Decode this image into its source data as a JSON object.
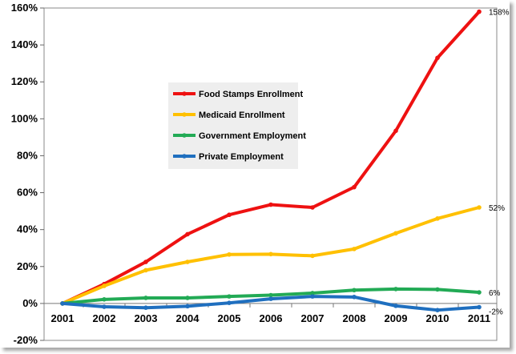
{
  "chart_data": {
    "type": "line",
    "title": "",
    "xlabel": "",
    "ylabel": "",
    "x": [
      "2001",
      "2002",
      "2003",
      "2004",
      "2005",
      "2006",
      "2007",
      "2008",
      "2009",
      "2010",
      "2011"
    ],
    "ylim": [
      -20,
      160
    ],
    "yticks": [
      -20,
      0,
      20,
      40,
      60,
      80,
      100,
      120,
      140,
      160
    ],
    "ytick_labels": [
      "-20%",
      "0%",
      "20%",
      "40%",
      "60%",
      "80%",
      "100%",
      "120%",
      "140%",
      "160%"
    ],
    "grid": false,
    "legend_position": "center-left",
    "series": [
      {
        "name": "Food Stamps Enrollment",
        "color": "#ee1111",
        "values": [
          0,
          10.5,
          22.5,
          37.5,
          48,
          53.5,
          52,
          63,
          93.5,
          133,
          158
        ],
        "end_label": "158%"
      },
      {
        "name": "Medicaid Enrollment",
        "color": "#ffc000",
        "values": [
          0,
          9.5,
          18,
          22.5,
          26.5,
          26.7,
          25.8,
          29.5,
          38,
          46,
          52
        ],
        "end_label": "52%"
      },
      {
        "name": "Government Employment",
        "color": "#22aa55",
        "values": [
          0,
          2.2,
          3,
          3,
          3.8,
          4.5,
          5.6,
          7.2,
          7.8,
          7.6,
          6
        ],
        "end_label": "6%"
      },
      {
        "name": "Private Employment",
        "color": "#1f6fbf",
        "values": [
          0,
          -1.8,
          -2.3,
          -1.5,
          0.3,
          2.5,
          3.8,
          3.5,
          -1.3,
          -3.6,
          -2
        ],
        "end_label": "-2%"
      }
    ]
  }
}
